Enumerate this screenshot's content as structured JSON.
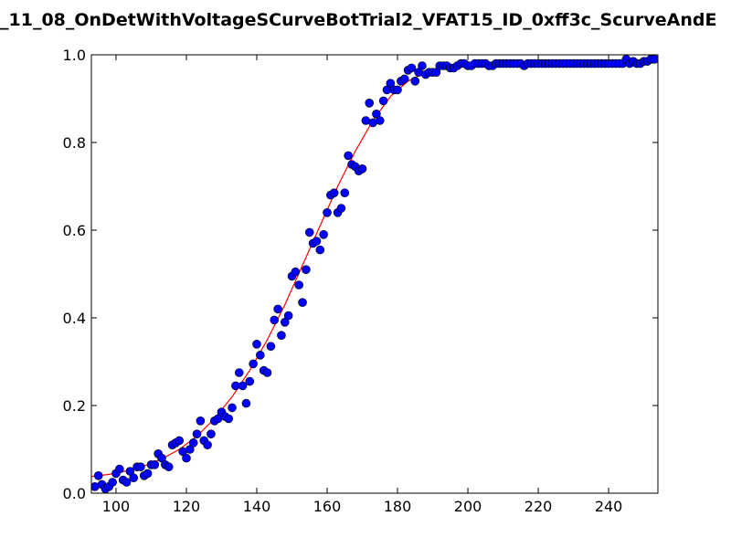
{
  "chart_data": {
    "type": "scatter",
    "title": "_11_08_OnDetWithVoltageSCurveBotTrial2_VFAT15_ID_0xff3c_ScurveAndE",
    "xlabel": "",
    "ylabel": "",
    "xlim": [
      93,
      254
    ],
    "ylim": [
      0.0,
      1.0
    ],
    "x_ticks": [
      100,
      120,
      140,
      160,
      180,
      200,
      220,
      240
    ],
    "x_tick_labels": [
      "100",
      "120",
      "140",
      "160",
      "180",
      "200",
      "220",
      "240"
    ],
    "y_ticks": [
      0.0,
      0.2,
      0.4,
      0.6,
      0.8,
      1.0
    ],
    "y_tick_labels": [
      "0.0",
      "0.2",
      "0.4",
      "0.6",
      "0.8",
      "1.0"
    ],
    "grid": false,
    "legend": "none",
    "colors": {
      "points": "#0000ff",
      "point_edge": "#000000",
      "fit": "#ff0000"
    },
    "series": [
      {
        "kind": "points",
        "x": [
          94,
          95,
          96,
          97,
          98,
          99,
          100,
          101,
          102,
          103,
          104,
          105,
          106,
          107,
          108,
          109,
          110,
          111,
          112,
          113,
          114,
          115,
          116,
          117,
          118,
          119,
          120,
          121,
          122,
          123,
          124,
          125,
          126,
          127,
          128,
          129,
          130,
          131,
          132,
          133,
          134,
          135,
          136,
          137,
          138,
          139,
          140,
          141,
          142,
          143,
          144,
          145,
          146,
          147,
          148,
          149,
          150,
          151,
          152,
          153,
          154,
          155,
          156,
          157,
          158,
          159,
          160,
          161,
          162,
          163,
          164,
          165,
          166,
          167,
          168,
          169,
          170,
          171,
          172,
          173,
          174,
          175,
          176,
          177,
          178,
          179,
          180,
          181,
          182,
          183,
          184,
          185,
          186,
          187,
          188,
          189,
          190,
          191,
          192,
          193,
          194,
          195,
          196,
          197,
          198,
          199,
          200,
          201,
          202,
          203,
          204,
          205,
          206,
          207,
          208,
          209,
          210,
          211,
          212,
          213,
          214,
          215,
          216,
          217,
          218,
          219,
          220,
          221,
          222,
          223,
          224,
          225,
          226,
          227,
          228,
          229,
          230,
          231,
          232,
          233,
          234,
          235,
          236,
          237,
          238,
          239,
          240,
          241,
          242,
          243,
          244,
          245,
          246,
          247,
          248,
          249,
          250,
          251,
          252,
          253
        ],
        "y": [
          0.015,
          0.04,
          0.02,
          0.01,
          0.015,
          0.025,
          0.045,
          0.055,
          0.03,
          0.025,
          0.05,
          0.035,
          0.06,
          0.06,
          0.04,
          0.045,
          0.065,
          0.065,
          0.09,
          0.08,
          0.065,
          0.06,
          0.11,
          0.115,
          0.12,
          0.095,
          0.08,
          0.1,
          0.115,
          0.135,
          0.165,
          0.12,
          0.11,
          0.135,
          0.165,
          0.17,
          0.185,
          0.175,
          0.17,
          0.195,
          0.245,
          0.275,
          0.245,
          0.205,
          0.255,
          0.295,
          0.34,
          0.315,
          0.28,
          0.275,
          0.335,
          0.395,
          0.42,
          0.36,
          0.39,
          0.405,
          0.495,
          0.505,
          0.475,
          0.435,
          0.51,
          0.595,
          0.57,
          0.575,
          0.555,
          0.59,
          0.64,
          0.68,
          0.685,
          0.64,
          0.65,
          0.685,
          0.77,
          0.75,
          0.745,
          0.735,
          0.74,
          0.85,
          0.89,
          0.845,
          0.865,
          0.85,
          0.895,
          0.92,
          0.935,
          0.92,
          0.92,
          0.94,
          0.945,
          0.965,
          0.97,
          0.94,
          0.96,
          0.975,
          0.955,
          0.96,
          0.96,
          0.96,
          0.975,
          0.975,
          0.975,
          0.97,
          0.97,
          0.975,
          0.98,
          0.98,
          0.975,
          0.975,
          0.98,
          0.98,
          0.98,
          0.98,
          0.975,
          0.975,
          0.98,
          0.98,
          0.98,
          0.98,
          0.98,
          0.98,
          0.98,
          0.98,
          0.975,
          0.98,
          0.98,
          0.98,
          0.98,
          0.98,
          0.98,
          0.98,
          0.98,
          0.98,
          0.98,
          0.98,
          0.98,
          0.98,
          0.98,
          0.98,
          0.98,
          0.98,
          0.98,
          0.98,
          0.98,
          0.98,
          0.98,
          0.98,
          0.98,
          0.98,
          0.98,
          0.98,
          0.98,
          0.99,
          0.98,
          0.985,
          0.98,
          0.98,
          0.985,
          0.985,
          0.99,
          0.99
        ]
      },
      {
        "kind": "fit-line",
        "x": [
          93,
          98,
          103,
          108,
          113,
          118,
          123,
          128,
          133,
          138,
          143,
          148,
          153,
          158,
          163,
          168,
          173,
          178,
          183,
          188,
          193,
          198,
          203,
          208,
          213,
          218,
          223,
          228,
          233,
          238,
          243,
          248,
          254
        ],
        "y": [
          0.038,
          0.043,
          0.051,
          0.062,
          0.078,
          0.1,
          0.13,
          0.17,
          0.22,
          0.28,
          0.35,
          0.43,
          0.52,
          0.61,
          0.7,
          0.78,
          0.85,
          0.905,
          0.94,
          0.96,
          0.972,
          0.978,
          0.981,
          0.982,
          0.983,
          0.983,
          0.983,
          0.983,
          0.983,
          0.983,
          0.983,
          0.983,
          0.983
        ]
      }
    ]
  }
}
